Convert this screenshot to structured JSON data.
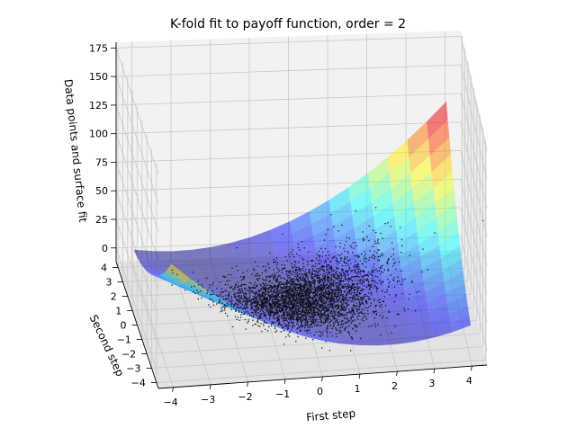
{
  "chart_data": {
    "type": "surface3d",
    "title": "K-fold fit to payoff function, order = 2",
    "xlabel": "First step",
    "ylabel": "Second step",
    "zlabel": "Data points and surface fit",
    "x_ticks": [
      -4,
      -3,
      -2,
      -1,
      0,
      1,
      2,
      3,
      4
    ],
    "y_ticks": [
      -4,
      -3,
      -2,
      -1,
      0,
      1,
      2,
      3,
      4
    ],
    "z_ticks": [
      0,
      25,
      50,
      75,
      100,
      125,
      150,
      175
    ],
    "xlim": [
      -4.4,
      4.4
    ],
    "ylim": [
      -4.4,
      4.4
    ],
    "zlim": [
      -12,
      180
    ],
    "grid": true,
    "surface": {
      "model": "quadratic",
      "colormap": "jet",
      "alpha": 0.5,
      "coefficients": {
        "c": 3,
        "x": 3,
        "y": 1,
        "xx": 2.5,
        "yy": 1,
        "xy": 3
      }
    },
    "scatter": {
      "color": "#000000",
      "approx_points": 4000,
      "x_mean": 0,
      "x_std": 1,
      "y_mean": 0,
      "y_std": 1
    }
  }
}
